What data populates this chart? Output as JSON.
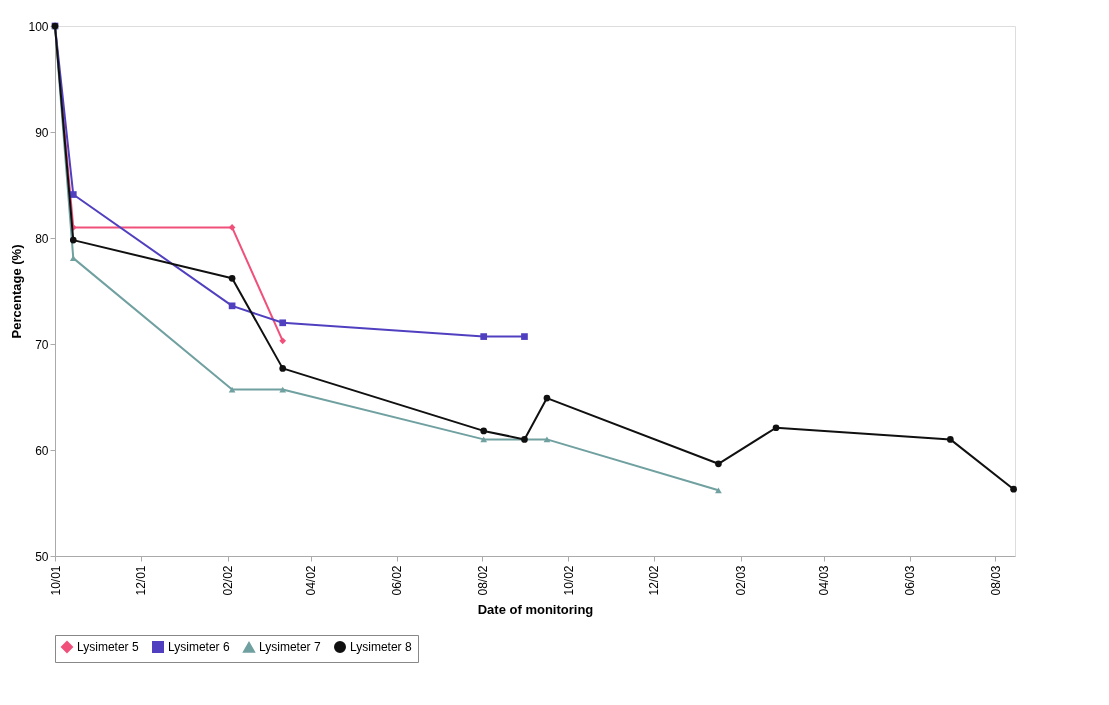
{
  "chart_data": {
    "type": "line",
    "xlabel": "Date of monitoring",
    "ylabel": "Percentage (%)",
    "xlim": [
      "2001-10-01",
      "2003-08-15"
    ],
    "xticks": [
      {
        "value": "2001-10-01",
        "label": "10/01"
      },
      {
        "value": "2001-12-01",
        "label": "12/01"
      },
      {
        "value": "2002-02-01",
        "label": "02/02"
      },
      {
        "value": "2002-04-01",
        "label": "04/02"
      },
      {
        "value": "2002-06-01",
        "label": "06/02"
      },
      {
        "value": "2002-08-01",
        "label": "08/02"
      },
      {
        "value": "2002-10-01",
        "label": "10/02"
      },
      {
        "value": "2002-12-01",
        "label": "12/02"
      },
      {
        "value": "2003-02-01",
        "label": "02/03"
      },
      {
        "value": "2003-04-01",
        "label": "04/03"
      },
      {
        "value": "2003-06-01",
        "label": "06/03"
      },
      {
        "value": "2003-08-01",
        "label": "08/03"
      }
    ],
    "ylim": [
      50,
      100
    ],
    "yticks": [
      50,
      60,
      70,
      80,
      90,
      100
    ],
    "grid": false,
    "legend": "bottom",
    "series": [
      {
        "name": "Lysimeter 5",
        "color": "#f0507a",
        "marker": "diamond",
        "x": [
          "2001-10-01",
          "2001-10-14",
          "2002-02-04",
          "2002-03-12"
        ],
        "values": [
          100,
          81.0,
          81.0,
          70.3
        ]
      },
      {
        "name": "Lysimeter 6",
        "color": "#5040c0",
        "marker": "square",
        "x": [
          "2001-10-01",
          "2001-10-14",
          "2002-02-04",
          "2002-03-12",
          "2002-08-02",
          "2002-08-31"
        ],
        "values": [
          100,
          84.1,
          73.6,
          72.0,
          70.7,
          70.7
        ]
      },
      {
        "name": "Lysimeter 7",
        "color": "#70a0a0",
        "marker": "triangle",
        "x": [
          "2001-10-01",
          "2001-10-14",
          "2002-02-04",
          "2002-03-12",
          "2002-08-02",
          "2002-09-16",
          "2003-01-16"
        ],
        "values": [
          100,
          78.1,
          65.7,
          65.7,
          61.0,
          61.0,
          56.2
        ]
      },
      {
        "name": "Lysimeter 8",
        "color": "#101010",
        "marker": "circle",
        "x": [
          "2001-10-01",
          "2001-10-14",
          "2002-02-04",
          "2002-03-12",
          "2002-08-02",
          "2002-08-31",
          "2002-09-16",
          "2003-01-16",
          "2003-02-26",
          "2003-06-30",
          "2003-08-14"
        ],
        "values": [
          100,
          79.8,
          76.2,
          67.7,
          61.8,
          61.0,
          64.9,
          58.7,
          62.1,
          61.0,
          56.3
        ]
      }
    ]
  }
}
